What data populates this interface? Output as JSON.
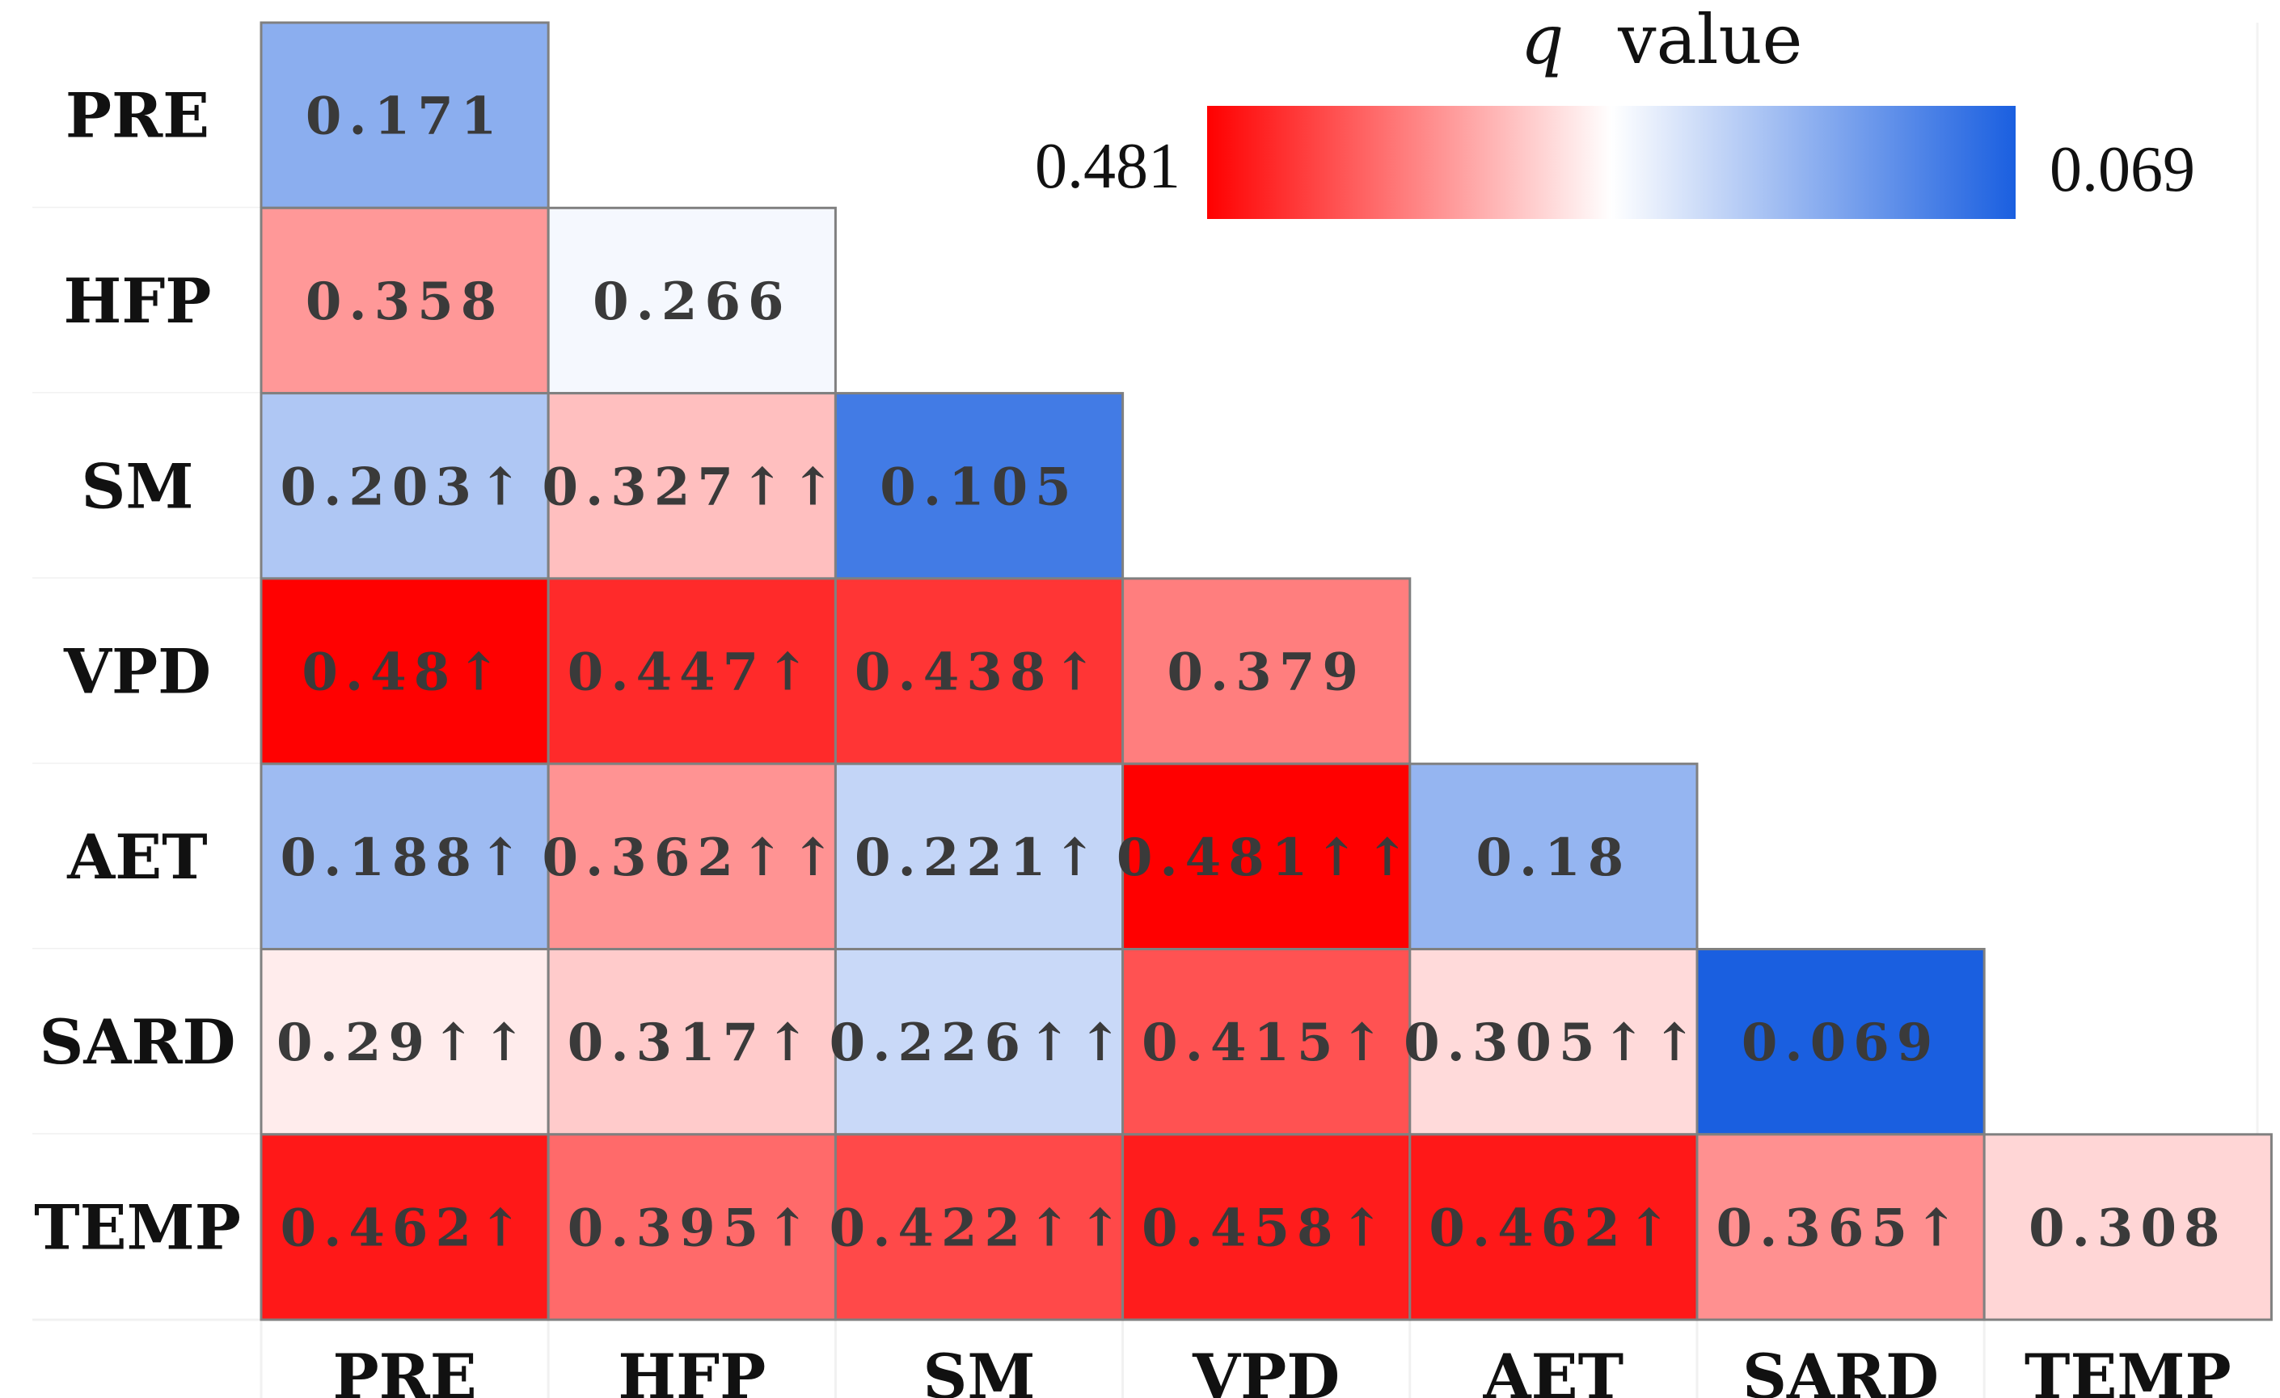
{
  "chart_data": {
    "type": "heatmap",
    "title": "q value",
    "title_var": "q",
    "title_rest": "value",
    "row_labels": [
      "PRE",
      "HFP",
      "SM",
      "VPD",
      "AET",
      "SARD",
      "TEMP"
    ],
    "col_labels": [
      "PRE",
      "HFP",
      "SM",
      "VPD",
      "AET",
      "SARD",
      "TEMP"
    ],
    "color_scale": {
      "min": 0.069,
      "max": 0.481,
      "min_label": "0.069",
      "max_label": "0.481",
      "low_color": "#1a5fe0",
      "mid_color": "#ffffff",
      "high_color": "#ff0000"
    },
    "cells": [
      {
        "row": 0,
        "col": 0,
        "value": 0.171,
        "label": "0.171"
      },
      {
        "row": 1,
        "col": 0,
        "value": 0.358,
        "label": "0.358"
      },
      {
        "row": 1,
        "col": 1,
        "value": 0.266,
        "label": "0.266"
      },
      {
        "row": 2,
        "col": 0,
        "value": 0.203,
        "label": "0.203↑"
      },
      {
        "row": 2,
        "col": 1,
        "value": 0.327,
        "label": "0.327↑↑"
      },
      {
        "row": 2,
        "col": 2,
        "value": 0.105,
        "label": "0.105"
      },
      {
        "row": 3,
        "col": 0,
        "value": 0.48,
        "label": "0.48↑"
      },
      {
        "row": 3,
        "col": 1,
        "value": 0.447,
        "label": "0.447↑"
      },
      {
        "row": 3,
        "col": 2,
        "value": 0.438,
        "label": "0.438↑"
      },
      {
        "row": 3,
        "col": 3,
        "value": 0.379,
        "label": "0.379"
      },
      {
        "row": 4,
        "col": 0,
        "value": 0.188,
        "label": "0.188↑"
      },
      {
        "row": 4,
        "col": 1,
        "value": 0.362,
        "label": "0.362↑↑"
      },
      {
        "row": 4,
        "col": 2,
        "value": 0.221,
        "label": "0.221↑"
      },
      {
        "row": 4,
        "col": 3,
        "value": 0.481,
        "label": "0.481↑↑"
      },
      {
        "row": 4,
        "col": 4,
        "value": 0.18,
        "label": "0.18"
      },
      {
        "row": 5,
        "col": 0,
        "value": 0.29,
        "label": "0.29↑↑"
      },
      {
        "row": 5,
        "col": 1,
        "value": 0.317,
        "label": "0.317↑"
      },
      {
        "row": 5,
        "col": 2,
        "value": 0.226,
        "label": "0.226↑↑"
      },
      {
        "row": 5,
        "col": 3,
        "value": 0.415,
        "label": "0.415↑"
      },
      {
        "row": 5,
        "col": 4,
        "value": 0.305,
        "label": "0.305↑↑"
      },
      {
        "row": 5,
        "col": 5,
        "value": 0.069,
        "label": "0.069"
      },
      {
        "row": 6,
        "col": 0,
        "value": 0.462,
        "label": "0.462↑"
      },
      {
        "row": 6,
        "col": 1,
        "value": 0.395,
        "label": "0.395↑"
      },
      {
        "row": 6,
        "col": 2,
        "value": 0.422,
        "label": "0.422↑↑"
      },
      {
        "row": 6,
        "col": 3,
        "value": 0.458,
        "label": "0.458↑"
      },
      {
        "row": 6,
        "col": 4,
        "value": 0.462,
        "label": "0.462↑"
      },
      {
        "row": 6,
        "col": 5,
        "value": 0.365,
        "label": "0.365↑"
      },
      {
        "row": 6,
        "col": 6,
        "value": 0.308,
        "label": "0.308"
      }
    ]
  }
}
